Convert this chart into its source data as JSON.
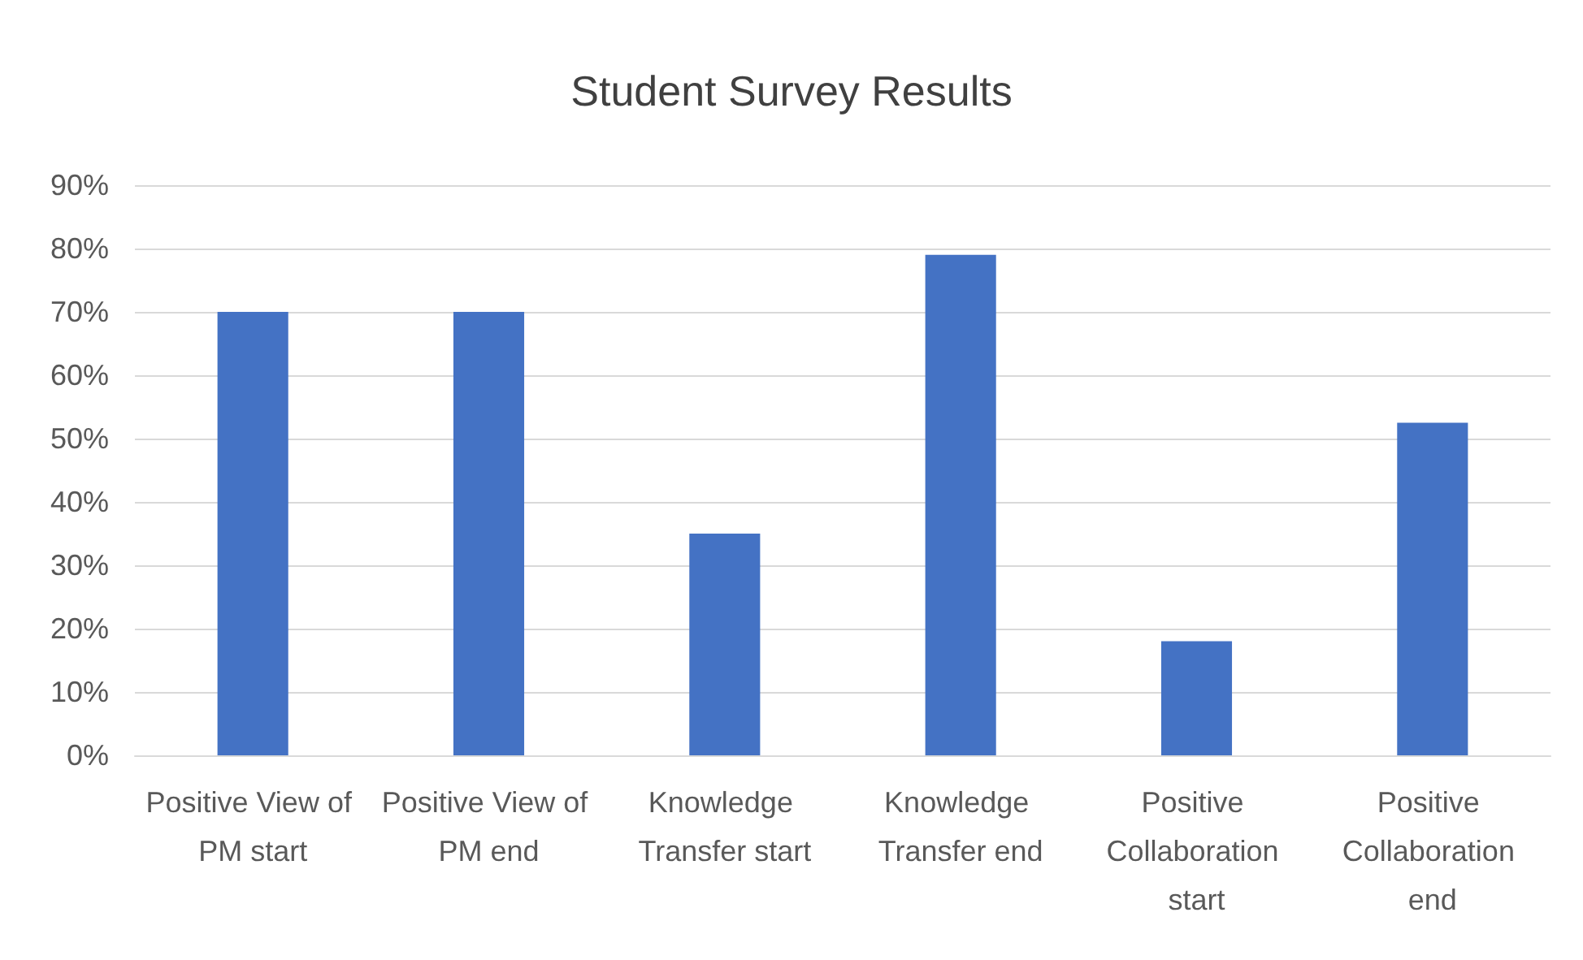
{
  "chart_data": {
    "type": "bar",
    "title": "Student Survey Results",
    "categories": [
      "Positive View of PM start",
      "Positive View of PM end",
      "Knowledge Transfer start",
      "Knowledge Transfer end",
      "Positive Collaboration start",
      "Positive Collaboration end"
    ],
    "values": [
      70,
      70,
      35,
      79,
      18,
      52.5
    ],
    "color": "#4472c4",
    "ylim": [
      0,
      90
    ],
    "yticks": [
      {
        "value": 0,
        "label": "0%"
      },
      {
        "value": 10,
        "label": "10%"
      },
      {
        "value": 20,
        "label": "20%"
      },
      {
        "value": 30,
        "label": "30%"
      },
      {
        "value": 40,
        "label": "40%"
      },
      {
        "value": 50,
        "label": "50%"
      },
      {
        "value": 60,
        "label": "60%"
      },
      {
        "value": 70,
        "label": "70%"
      },
      {
        "value": 80,
        "label": "80%"
      },
      {
        "value": 90,
        "label": "90%"
      }
    ],
    "grid": true
  }
}
